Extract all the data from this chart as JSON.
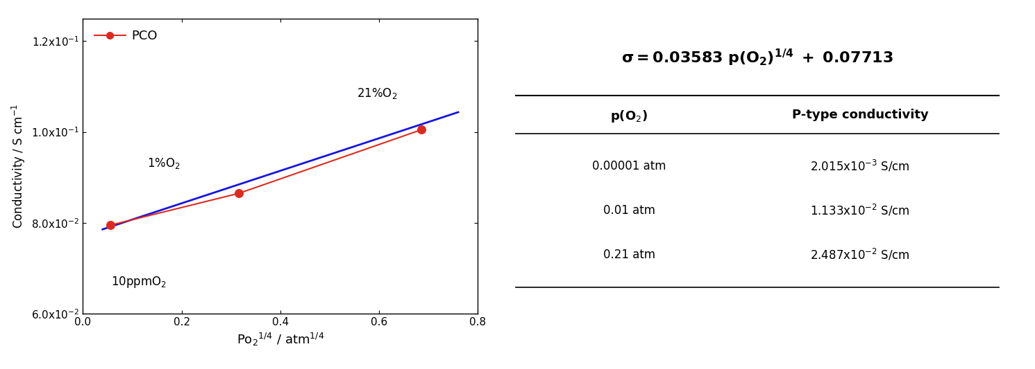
{
  "data_points_x": [
    0.05623,
    0.31623,
    0.68557
  ],
  "data_points_y": [
    0.0795,
    0.0865,
    0.1005
  ],
  "fit_slope": 0.03583,
  "fit_intercept": 0.07713,
  "xlim": [
    0.0,
    0.8
  ],
  "ylim": [
    0.06,
    0.125
  ],
  "yticks": [
    0.06,
    0.08,
    0.1,
    0.12
  ],
  "ytick_labels": [
    "6.0x10$^{-2}$",
    "8.0x10$^{-2}$",
    "1.0x10$^{-1}$",
    "1.2x10$^{-1}$"
  ],
  "xticks": [
    0.0,
    0.2,
    0.4,
    0.6,
    0.8
  ],
  "xlabel": "Po$_2$$^{1/4}$ / atm$^{1/4}$",
  "ylabel": "Conductivity / S cm$^{-1}$",
  "legend_label": "PCO",
  "point_color": "#e0291e",
  "line_color": "#e0291e",
  "fit_line_color": "#1515e0",
  "background_color": "#ffffff"
}
